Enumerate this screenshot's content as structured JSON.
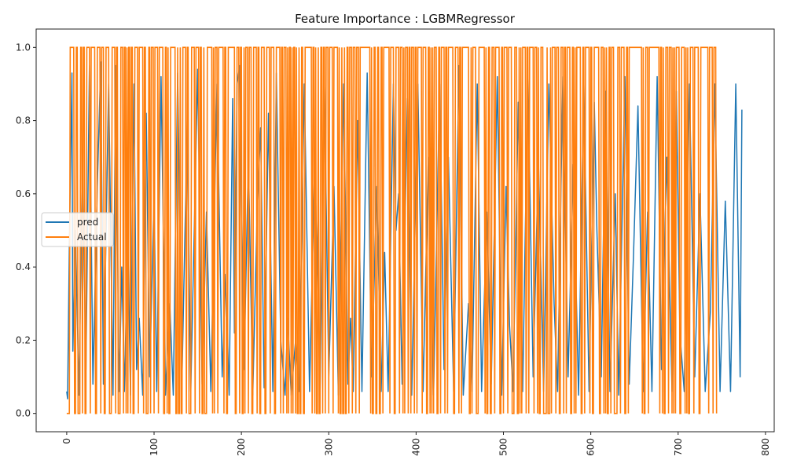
{
  "chart_data": {
    "type": "line",
    "title": "Feature Importance : LGBMRegressor",
    "xlabel": "",
    "ylabel": "",
    "xlim": [
      -35,
      810
    ],
    "ylim": [
      -0.05,
      1.05
    ],
    "xticks": [
      0,
      100,
      200,
      300,
      400,
      500,
      600,
      700,
      800
    ],
    "yticks": [
      0.0,
      0.2,
      0.4,
      0.6,
      0.8,
      1.0
    ],
    "xtick_rotation": 90,
    "grid": false,
    "legend_position": "center-left",
    "x_start": 0,
    "x_end": 773,
    "series": [
      {
        "name": "pred",
        "color": "#1f77b4",
        "points": [
          [
            0,
            0.06
          ],
          [
            1,
            0.04
          ],
          [
            3,
            0.46
          ],
          [
            6,
            0.93
          ],
          [
            7,
            0.17
          ],
          [
            10,
            0.5
          ],
          [
            14,
            0.05
          ],
          [
            18,
            0.7
          ],
          [
            22,
            0.12
          ],
          [
            26,
            0.95
          ],
          [
            30,
            0.08
          ],
          [
            35,
            0.62
          ],
          [
            39,
            0.96
          ],
          [
            42,
            0.08
          ],
          [
            48,
            0.9
          ],
          [
            53,
            0.05
          ],
          [
            56,
            0.95
          ],
          [
            60,
            0.06
          ],
          [
            63,
            0.4
          ],
          [
            66,
            0.06
          ],
          [
            70,
            0.48
          ],
          [
            73,
            0.05
          ],
          [
            77,
            0.9
          ],
          [
            80,
            0.12
          ],
          [
            83,
            0.26
          ],
          [
            87,
            0.05
          ],
          [
            91,
            0.82
          ],
          [
            95,
            0.1
          ],
          [
            100,
            0.6
          ],
          [
            103,
            0.06
          ],
          [
            108,
            0.92
          ],
          [
            112,
            0.28
          ],
          [
            113,
            0.05
          ],
          [
            118,
            0.3
          ],
          [
            122,
            0.05
          ],
          [
            127,
            0.93
          ],
          [
            132,
            0.1
          ],
          [
            138,
            0.8
          ],
          [
            142,
            0.06
          ],
          [
            150,
            0.94
          ],
          [
            155,
            0.08
          ],
          [
            160,
            0.55
          ],
          [
            165,
            0.06
          ],
          [
            172,
            0.9
          ],
          [
            178,
            0.1
          ],
          [
            182,
            0.38
          ],
          [
            186,
            0.05
          ],
          [
            190,
            0.86
          ],
          [
            192,
            0.22
          ],
          [
            195,
            0.9
          ],
          [
            198,
            0.95
          ],
          [
            203,
            0.12
          ],
          [
            208,
            0.7
          ],
          [
            213,
            0.05
          ],
          [
            218,
            0.55
          ],
          [
            222,
            0.78
          ],
          [
            226,
            0.07
          ],
          [
            231,
            0.82
          ],
          [
            236,
            0.06
          ],
          [
            240,
            0.93
          ],
          [
            245,
            0.2
          ],
          [
            250,
            0.05
          ],
          [
            253,
            0.26
          ],
          [
            257,
            0.05
          ],
          [
            262,
            0.2
          ],
          [
            266,
            0.06
          ],
          [
            272,
            0.9
          ],
          [
            278,
            0.06
          ],
          [
            284,
            0.7
          ],
          [
            290,
            0.05
          ],
          [
            295,
            0.9
          ],
          [
            300,
            0.1
          ],
          [
            306,
            0.62
          ],
          [
            311,
            0.05
          ],
          [
            317,
            0.9
          ],
          [
            322,
            0.08
          ],
          [
            325,
            0.26
          ],
          [
            328,
            0.06
          ],
          [
            333,
            0.8
          ],
          [
            338,
            0.06
          ],
          [
            344,
            0.93
          ],
          [
            349,
            0.1
          ],
          [
            355,
            0.62
          ],
          [
            360,
            0.06
          ],
          [
            364,
            0.44
          ],
          [
            368,
            0.06
          ],
          [
            374,
            0.9
          ],
          [
            377,
            0.5
          ],
          [
            380,
            0.6
          ],
          [
            384,
            0.08
          ],
          [
            390,
            0.86
          ],
          [
            395,
            0.05
          ],
          [
            402,
            0.9
          ],
          [
            408,
            0.06
          ],
          [
            414,
            0.7
          ],
          [
            420,
            0.05
          ],
          [
            427,
            0.9
          ],
          [
            432,
            0.12
          ],
          [
            437,
            0.7
          ],
          [
            443,
            0.06
          ],
          [
            449,
            0.95
          ],
          [
            454,
            0.05
          ],
          [
            460,
            0.3
          ],
          [
            464,
            0.06
          ],
          [
            470,
            0.9
          ],
          [
            475,
            0.06
          ],
          [
            481,
            0.55
          ],
          [
            486,
            0.08
          ],
          [
            493,
            0.92
          ],
          [
            498,
            0.05
          ],
          [
            503,
            0.62
          ],
          [
            507,
            0.24
          ],
          [
            511,
            0.06
          ],
          [
            517,
            0.85
          ],
          [
            522,
            0.06
          ],
          [
            528,
            0.93
          ],
          [
            534,
            0.1
          ],
          [
            540,
            0.7
          ],
          [
            546,
            0.06
          ],
          [
            552,
            0.9
          ],
          [
            558,
            0.3
          ],
          [
            562,
            0.06
          ],
          [
            568,
            0.92
          ],
          [
            574,
            0.1
          ],
          [
            580,
            0.68
          ],
          [
            586,
            0.05
          ],
          [
            592,
            0.9
          ],
          [
            598,
            0.06
          ],
          [
            604,
            0.85
          ],
          [
            607,
            0.5
          ],
          [
            612,
            0.1
          ],
          [
            617,
            0.88
          ],
          [
            622,
            0.06
          ],
          [
            628,
            0.6
          ],
          [
            632,
            0.05
          ],
          [
            639,
            0.92
          ],
          [
            644,
            0.08
          ],
          [
            649,
            0.44
          ],
          [
            654,
            0.84
          ],
          [
            660,
            0.06
          ],
          [
            665,
            0.55
          ],
          [
            670,
            0.06
          ],
          [
            676,
            0.92
          ],
          [
            681,
            0.12
          ],
          [
            687,
            0.7
          ],
          [
            693,
            0.06
          ],
          [
            698,
            0.88
          ],
          [
            702,
            0.22
          ],
          [
            707,
            0.06
          ],
          [
            713,
            0.9
          ],
          [
            719,
            0.1
          ],
          [
            725,
            0.6
          ],
          [
            731,
            0.06
          ],
          [
            737,
            0.28
          ],
          [
            742,
            0.9
          ],
          [
            748,
            0.06
          ],
          [
            754,
            0.58
          ],
          [
            760,
            0.06
          ],
          [
            766,
            0.9
          ],
          [
            771,
            0.1
          ],
          [
            773,
            0.83
          ]
        ]
      },
      {
        "name": "Actual",
        "color": "#ff7f0e",
        "values": "0000111110011000110110011110111110011110111001111000111101100011101101011011001111011111011000110111011110111110011010011111100100100111101100011110111101100100011111101011101111110110011111111001110110010111011100111101100111100111101111001111101101110101101011010010011001111111101101001001101101110111101111101001001001101110111011101111111111110100110011001101111111011110011110111010111011011101101111101111001101010111001101111011011111100111101101111111100101111000111111101001100111011111001101111011110001110010101111011011111011101001110000100010111101110011101101111001101011111001101111101100111111001110101001101110000111011110011011111111111111101001110111111111111011010011101110101011110011110101001111011111001111111110111101110"
      }
    ]
  }
}
